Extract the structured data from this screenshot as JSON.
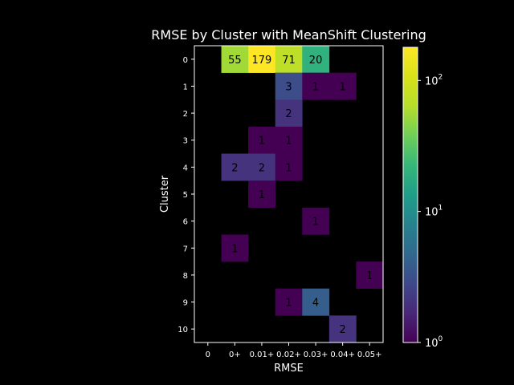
{
  "chart_data": {
    "type": "heatmap",
    "title": "RMSE by Cluster with MeanShift Clustering",
    "xlabel": "RMSE",
    "ylabel": "Cluster",
    "x_categories": [
      "0",
      "0+",
      "0.01+",
      "0.02+",
      "0.03+",
      "0.04+",
      "0.05+"
    ],
    "y_categories": [
      "0",
      "1",
      "2",
      "3",
      "4",
      "5",
      "6",
      "7",
      "8",
      "9",
      "10"
    ],
    "values": [
      [
        null,
        55,
        179,
        71,
        20,
        null,
        null
      ],
      [
        null,
        null,
        null,
        3,
        1,
        1,
        null
      ],
      [
        null,
        null,
        null,
        2,
        null,
        null,
        null
      ],
      [
        null,
        null,
        1,
        1,
        null,
        null,
        null
      ],
      [
        null,
        2,
        2,
        1,
        null,
        null,
        null
      ],
      [
        null,
        null,
        1,
        null,
        null,
        null,
        null
      ],
      [
        null,
        null,
        null,
        null,
        1,
        null,
        null
      ],
      [
        null,
        1,
        null,
        null,
        null,
        null,
        null
      ],
      [
        null,
        null,
        null,
        null,
        null,
        null,
        1
      ],
      [
        null,
        null,
        null,
        1,
        4,
        null,
        null
      ],
      [
        null,
        null,
        null,
        null,
        null,
        2,
        null
      ]
    ],
    "colorbar": {
      "scale": "log",
      "min": 1,
      "max": 179,
      "colormap": "viridis",
      "ticks": [
        {
          "value": 1,
          "label": "10",
          "exp": "0"
        },
        {
          "value": 10,
          "label": "10",
          "exp": "1"
        },
        {
          "value": 100,
          "label": "10",
          "exp": "2"
        }
      ]
    },
    "colors": {
      "background": "#000000",
      "foreground": "#ffffff",
      "annotation_text": "#000000"
    }
  }
}
